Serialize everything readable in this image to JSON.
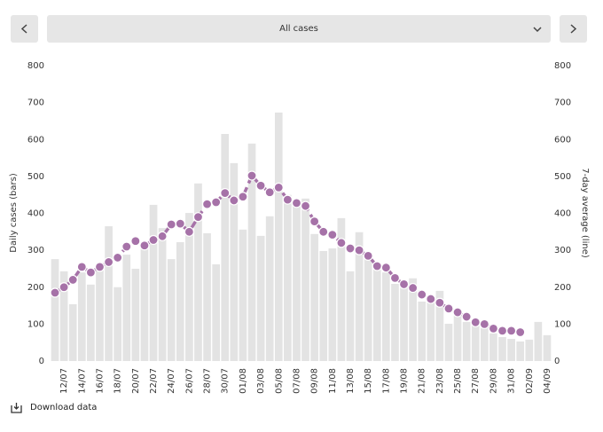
{
  "dropdown": "All cases",
  "download": "Download data",
  "chart_data": {
    "type": "bar-line",
    "y_label": "Daily cases (bars)",
    "y2_label": "7-day average (line)",
    "categories": [
      null,
      "12/07",
      null,
      "14/07",
      null,
      "16/07",
      null,
      "18/07",
      null,
      "20/07",
      null,
      "22/07",
      null,
      "24/07",
      null,
      "26/07",
      null,
      "28/07",
      null,
      "30/07",
      null,
      "01/08",
      null,
      "03/08",
      null,
      "05/08",
      null,
      "07/08",
      null,
      "09/08",
      null,
      "11/08",
      null,
      "13/08",
      null,
      "15/08",
      null,
      "17/08",
      null,
      "19/08",
      null,
      "21/08",
      null,
      "23/08",
      null,
      "25/08",
      null,
      "27/08",
      null,
      "29/08",
      null,
      "31/08",
      null,
      "02/09",
      null,
      "04/09"
    ],
    "series": [
      {
        "name": "Daily cases",
        "color": "#e3e3e3",
        "values": [
          276,
          243,
          154,
          240,
          207,
          252,
          365,
          200,
          288,
          250,
          308,
          423,
          360,
          276,
          322,
          401,
          481,
          346,
          262,
          615,
          536,
          356,
          589,
          339,
          392,
          673,
          450,
          430,
          440,
          344,
          298,
          305,
          387,
          243,
          349,
          293,
          248,
          240,
          209,
          204,
          224,
          161,
          161,
          190,
          101,
          123,
          106,
          99,
          89,
          75,
          65,
          60,
          53,
          58,
          106,
          70
        ]
      },
      {
        "name": "7-day average",
        "color": "#a672a8",
        "axis": "y2",
        "values": [
          185,
          200,
          220,
          255,
          240,
          255,
          268,
          280,
          310,
          325,
          313,
          328,
          338,
          370,
          372,
          350,
          390,
          425,
          430,
          455,
          435,
          445,
          502,
          475,
          457,
          470,
          437,
          428,
          420,
          378,
          350,
          342,
          320,
          305,
          300,
          285,
          257,
          253,
          225,
          208,
          198,
          180,
          168,
          158,
          142,
          132,
          120,
          105,
          100,
          88,
          82,
          82,
          78,
          null,
          null,
          null
        ]
      }
    ],
    "ylim": [
      0,
      800
    ],
    "yticks": [
      0,
      100,
      200,
      300,
      400,
      500,
      600,
      700,
      800
    ],
    "y2lim": [
      0,
      800
    ],
    "y2ticks": [
      0,
      100,
      200,
      300,
      400,
      500,
      600,
      700,
      800
    ]
  }
}
